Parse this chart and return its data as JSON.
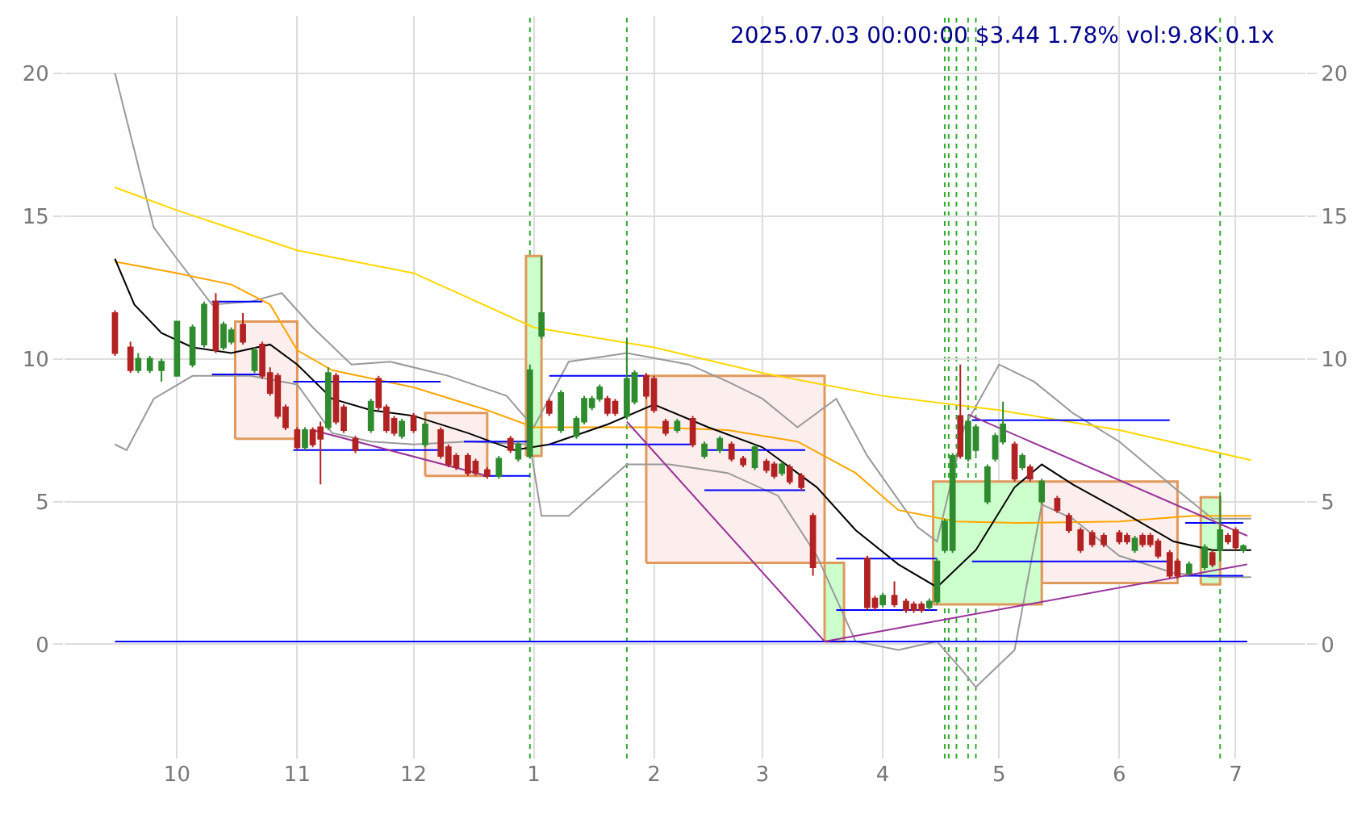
{
  "chart_data": {
    "type": "candlestick",
    "title": "2025.07.03 00:00:00 $3.44 1.78% vol:9.8K 0.1x",
    "xlim": [
      "2024-09-02",
      "2025-07-19"
    ],
    "xticks": [
      {
        "value": "2024-10-01",
        "label": "10"
      },
      {
        "value": "2024-11-01",
        "label": "11"
      },
      {
        "value": "2024-12-01",
        "label": "12"
      },
      {
        "value": "2025-01-01",
        "label": "1"
      },
      {
        "value": "2025-02-01",
        "label": "2"
      },
      {
        "value": "2025-03-01",
        "label": "3"
      },
      {
        "value": "2025-04-01",
        "label": "4"
      },
      {
        "value": "2025-05-01",
        "label": "5"
      },
      {
        "value": "2025-06-01",
        "label": "6"
      },
      {
        "value": "2025-07-01",
        "label": "7"
      }
    ],
    "ylim": [
      -4,
      22
    ],
    "yticks": [
      0,
      5,
      10,
      15,
      20
    ],
    "y2lim": [
      -4,
      22
    ],
    "y2ticks": [
      0,
      5,
      10,
      15,
      20
    ],
    "grid": true,
    "x": [
      "2024-09-15",
      "2024-09-19",
      "2024-09-21",
      "2024-09-24",
      "2024-09-27",
      "2024-10-01",
      "2024-10-05",
      "2024-10-08",
      "2024-10-11",
      "2024-10-13",
      "2024-10-15",
      "2024-10-18",
      "2024-10-21",
      "2024-10-23",
      "2024-10-25",
      "2024-10-27",
      "2024-10-29",
      "2024-11-01",
      "2024-11-03",
      "2024-11-05",
      "2024-11-07",
      "2024-11-09",
      "2024-11-11",
      "2024-11-13",
      "2024-11-16",
      "2024-11-20",
      "2024-11-22",
      "2024-11-24",
      "2024-11-26",
      "2024-11-28",
      "2024-12-01",
      "2024-12-04",
      "2024-12-08",
      "2024-12-10",
      "2024-12-12",
      "2024-12-15",
      "2024-12-17",
      "2024-12-20",
      "2024-12-23",
      "2024-12-26",
      "2024-12-28",
      "2024-12-31",
      "2025-01-03",
      "2025-01-05",
      "2025-01-08",
      "2025-01-12",
      "2025-01-14",
      "2025-01-16",
      "2025-01-18",
      "2025-01-20",
      "2025-01-22",
      "2025-01-25",
      "2025-01-27",
      "2025-01-30",
      "2025-02-01",
      "2025-02-04",
      "2025-02-07",
      "2025-02-11",
      "2025-02-14",
      "2025-02-18",
      "2025-02-21",
      "2025-02-24",
      "2025-02-27",
      "2025-03-02",
      "2025-03-04",
      "2025-03-06",
      "2025-03-08",
      "2025-03-11",
      "2025-03-14",
      "2025-03-28",
      "2025-03-30",
      "2025-04-01",
      "2025-04-04",
      "2025-04-07",
      "2025-04-09",
      "2025-04-11",
      "2025-04-13",
      "2025-04-15",
      "2025-04-17",
      "2025-04-19",
      "2025-04-21",
      "2025-04-23",
      "2025-04-25",
      "2025-04-28",
      "2025-04-30",
      "2025-05-02",
      "2025-05-05",
      "2025-05-07",
      "2025-05-09",
      "2025-05-12",
      "2025-05-16",
      "2025-05-19",
      "2025-05-22",
      "2025-05-25",
      "2025-05-28",
      "2025-06-01",
      "2025-06-03",
      "2025-06-05",
      "2025-06-07",
      "2025-06-09",
      "2025-06-11",
      "2025-06-14",
      "2025-06-16",
      "2025-06-19",
      "2025-06-23",
      "2025-06-25",
      "2025-06-27",
      "2025-06-29",
      "2025-07-01",
      "2025-07-03"
    ],
    "ohlc": [
      [
        11.6,
        11.7,
        10.1,
        10.2
      ],
      [
        10.4,
        10.6,
        9.5,
        9.6
      ],
      [
        9.6,
        10.2,
        9.5,
        10.0
      ],
      [
        9.6,
        10.1,
        9.5,
        10.0
      ],
      [
        9.6,
        10.0,
        9.2,
        9.9
      ],
      [
        9.4,
        11.3,
        9.4,
        11.3
      ],
      [
        9.8,
        11.2,
        9.7,
        11.1
      ],
      [
        10.5,
        12.0,
        10.4,
        11.9
      ],
      [
        12.0,
        12.3,
        10.2,
        10.3
      ],
      [
        10.4,
        11.3,
        10.3,
        11.2
      ],
      [
        10.6,
        11.1,
        10.5,
        11.0
      ],
      [
        11.2,
        11.6,
        10.5,
        10.6
      ],
      [
        9.6,
        10.4,
        9.5,
        10.3
      ],
      [
        10.5,
        10.6,
        9.3,
        9.4
      ],
      [
        9.5,
        9.7,
        8.7,
        8.8
      ],
      [
        9.4,
        9.5,
        7.9,
        8.0
      ],
      [
        8.3,
        8.4,
        7.5,
        7.6
      ],
      [
        7.5,
        7.6,
        6.8,
        6.9
      ],
      [
        6.9,
        7.6,
        6.8,
        7.5
      ],
      [
        7.5,
        7.6,
        6.9,
        7.0
      ],
      [
        7.6,
        7.8,
        5.6,
        7.2
      ],
      [
        7.6,
        9.7,
        7.5,
        9.5
      ],
      [
        9.4,
        9.5,
        7.7,
        7.8
      ],
      [
        8.3,
        8.4,
        7.4,
        7.5
      ],
      [
        7.2,
        7.3,
        6.7,
        6.8
      ],
      [
        7.5,
        8.6,
        7.4,
        8.5
      ],
      [
        9.3,
        9.4,
        8.2,
        8.3
      ],
      [
        8.3,
        8.4,
        7.4,
        7.5
      ],
      [
        7.9,
        8.0,
        7.3,
        7.4
      ],
      [
        7.3,
        7.9,
        7.2,
        7.8
      ],
      [
        8.0,
        8.1,
        7.4,
        7.5
      ],
      [
        7.0,
        7.8,
        6.9,
        7.7
      ],
      [
        7.5,
        7.6,
        6.5,
        6.6
      ],
      [
        6.9,
        7.0,
        6.2,
        6.3
      ],
      [
        6.6,
        6.7,
        6.1,
        6.2
      ],
      [
        6.6,
        6.7,
        5.9,
        6.0
      ],
      [
        6.4,
        6.5,
        5.9,
        6.0
      ],
      [
        6.1,
        6.2,
        5.8,
        5.9
      ],
      [
        5.9,
        6.6,
        5.8,
        6.5
      ],
      [
        7.2,
        7.3,
        6.7,
        6.8
      ],
      [
        6.5,
        7.1,
        6.4,
        7.0
      ],
      [
        6.6,
        9.8,
        6.5,
        9.6
      ],
      [
        10.8,
        13.6,
        10.7,
        11.6
      ],
      [
        8.5,
        8.6,
        8.0,
        8.1
      ],
      [
        7.5,
        8.9,
        7.4,
        8.8
      ],
      [
        7.3,
        8.0,
        7.2,
        7.9
      ],
      [
        7.8,
        8.7,
        7.7,
        8.6
      ],
      [
        8.3,
        8.7,
        8.2,
        8.6
      ],
      [
        8.6,
        9.1,
        8.5,
        9.0
      ],
      [
        8.6,
        8.7,
        8.0,
        8.1
      ],
      [
        8.5,
        8.6,
        8.0,
        8.1
      ],
      [
        8.0,
        10.7,
        7.9,
        9.3
      ],
      [
        8.5,
        9.6,
        8.4,
        9.5
      ],
      [
        9.4,
        9.5,
        8.6,
        8.7
      ],
      [
        9.3,
        9.4,
        8.1,
        8.2
      ],
      [
        7.8,
        7.9,
        7.3,
        7.4
      ],
      [
        7.5,
        7.9,
        7.4,
        7.8
      ],
      [
        7.9,
        8.0,
        6.9,
        7.0
      ],
      [
        6.6,
        7.1,
        6.5,
        7.0
      ],
      [
        6.8,
        7.3,
        6.7,
        7.2
      ],
      [
        7.0,
        7.1,
        6.4,
        6.5
      ],
      [
        6.5,
        6.6,
        6.2,
        6.3
      ],
      [
        6.2,
        7.0,
        6.1,
        6.9
      ],
      [
        6.4,
        6.5,
        6.0,
        6.1
      ],
      [
        6.3,
        6.4,
        5.8,
        5.9
      ],
      [
        6.0,
        6.4,
        5.9,
        6.3
      ],
      [
        6.2,
        6.3,
        5.6,
        5.7
      ],
      [
        5.9,
        6.0,
        5.4,
        5.5
      ],
      [
        4.5,
        4.6,
        2.4,
        2.7
      ],
      [
        3.0,
        3.1,
        1.2,
        1.3
      ],
      [
        1.6,
        1.7,
        1.2,
        1.3
      ],
      [
        1.4,
        1.8,
        1.3,
        1.7
      ],
      [
        1.7,
        2.2,
        1.3,
        1.4
      ],
      [
        1.5,
        1.6,
        1.1,
        1.2
      ],
      [
        1.4,
        1.5,
        1.1,
        1.2
      ],
      [
        1.4,
        1.5,
        1.1,
        1.2
      ],
      [
        1.3,
        1.6,
        1.2,
        1.5
      ],
      [
        1.5,
        3.0,
        1.4,
        2.9
      ],
      [
        3.3,
        4.4,
        3.2,
        4.3
      ],
      [
        3.3,
        6.7,
        3.2,
        6.6
      ],
      [
        8.0,
        9.8,
        6.5,
        6.6
      ],
      [
        6.5,
        7.9,
        6.4,
        7.8
      ],
      [
        6.8,
        7.7,
        6.7,
        7.6
      ],
      [
        5.0,
        6.3,
        4.9,
        6.2
      ],
      [
        6.5,
        7.4,
        6.4,
        7.3
      ],
      [
        7.1,
        8.5,
        7.0,
        7.7
      ],
      [
        7.0,
        7.1,
        5.7,
        5.8
      ],
      [
        6.2,
        6.7,
        6.1,
        6.6
      ],
      [
        6.2,
        6.3,
        5.7,
        5.8
      ],
      [
        5.0,
        5.8,
        4.9,
        5.7
      ],
      [
        5.1,
        5.2,
        4.6,
        4.7
      ],
      [
        4.5,
        4.6,
        3.9,
        4.0
      ],
      [
        4.0,
        4.1,
        3.2,
        3.3
      ],
      [
        3.9,
        4.0,
        3.4,
        3.5
      ],
      [
        3.8,
        3.9,
        3.4,
        3.5
      ],
      [
        3.9,
        4.0,
        3.5,
        3.6
      ],
      [
        3.8,
        3.9,
        3.5,
        3.6
      ],
      [
        3.3,
        3.8,
        3.2,
        3.7
      ],
      [
        3.8,
        3.9,
        3.4,
        3.5
      ],
      [
        3.8,
        3.9,
        3.4,
        3.5
      ],
      [
        3.6,
        3.7,
        3.0,
        3.1
      ],
      [
        3.2,
        3.3,
        2.3,
        2.4
      ],
      [
        2.9,
        3.0,
        2.3,
        2.4
      ],
      [
        2.5,
        2.9,
        2.4,
        2.8
      ],
      [
        2.7,
        3.5,
        2.6,
        3.4
      ],
      [
        3.2,
        3.3,
        2.7,
        2.8
      ],
      [
        3.3,
        5.2,
        2.9,
        4.0
      ],
      [
        3.8,
        3.9,
        3.5,
        3.6
      ],
      [
        4.0,
        4.1,
        3.3,
        3.4
      ],
      [
        3.3,
        3.5,
        3.2,
        3.44
      ]
    ],
    "series": [
      {
        "type": "area",
        "color": "#fdeeee",
        "x": [
          "2024-10-16",
          "2024-10-16",
          "2024-11-01",
          "2024-11-01",
          "2024-10-16"
        ],
        "values": [
          7.2,
          11.3,
          11.3,
          7.2,
          7.2
        ]
      },
      {
        "type": "area",
        "color": "#fdeeee",
        "x": [
          "2024-12-04",
          "2024-12-04",
          "2024-12-20",
          "2024-12-20",
          "2024-12-04"
        ],
        "values": [
          5.9,
          8.1,
          8.1,
          5.9,
          5.9
        ]
      },
      {
        "type": "area",
        "color": "#fdeeee",
        "x": [
          "2025-01-30",
          "2025-01-30",
          "2025-03-17",
          "2025-03-17",
          "2025-01-30"
        ],
        "values": [
          2.85,
          9.4,
          9.4,
          2.85,
          2.85
        ]
      },
      {
        "type": "area",
        "color": "#fdeeee",
        "x": [
          "2025-05-12",
          "2025-05-12",
          "2025-06-16",
          "2025-06-16",
          "2025-05-12"
        ],
        "values": [
          2.15,
          5.7,
          5.7,
          2.15,
          2.15
        ]
      },
      {
        "type": "area",
        "color": "#ccffcc",
        "x": [
          "2024-12-30",
          "2024-12-30",
          "2025-01-03",
          "2025-01-03",
          "2024-12-30"
        ],
        "values": [
          6.6,
          13.6,
          13.6,
          6.6,
          6.6
        ]
      },
      {
        "type": "area",
        "color": "#ccffcc",
        "x": [
          "2025-03-17",
          "2025-03-17",
          "2025-03-22",
          "2025-03-22",
          "2025-03-17"
        ],
        "values": [
          0.1,
          2.85,
          2.85,
          0.1,
          0.1
        ]
      },
      {
        "type": "area",
        "color": "#ccffcc",
        "x": [
          "2025-04-14",
          "2025-04-14",
          "2025-05-12",
          "2025-05-12",
          "2025-04-14"
        ],
        "values": [
          1.4,
          5.7,
          5.7,
          1.4,
          1.4
        ]
      },
      {
        "type": "area",
        "color": "#ccffcc",
        "x": [
          "2025-06-22",
          "2025-06-22",
          "2025-06-27",
          "2025-06-27",
          "2025-06-22"
        ],
        "values": [
          2.1,
          5.15,
          5.15,
          2.1,
          2.1
        ]
      },
      {
        "type": "line",
        "color": "#999999",
        "x": [
          "2024-09-15",
          "2024-09-20",
          "2024-09-25",
          "2024-10-01",
          "2024-10-10",
          "2024-10-20",
          "2024-10-28",
          "2024-11-05",
          "2024-11-15",
          "2024-11-25",
          "2024-12-10",
          "2024-12-25",
          "2025-01-01",
          "2025-01-10",
          "2025-01-25",
          "2025-02-10",
          "2025-02-20",
          "2025-03-01",
          "2025-03-10",
          "2025-03-20",
          "2025-03-28",
          "2025-04-10",
          "2025-04-15",
          "2025-04-22",
          "2025-05-01",
          "2025-05-10",
          "2025-05-20",
          "2025-06-01",
          "2025-06-15",
          "2025-06-25",
          "2025-07-05"
        ],
        "values": [
          20.0,
          17.3,
          14.6,
          13.5,
          11.9,
          12.0,
          12.3,
          11.1,
          9.8,
          9.9,
          9.4,
          8.7,
          7.6,
          9.9,
          10.2,
          9.8,
          9.2,
          8.6,
          7.6,
          8.6,
          6.6,
          4.1,
          3.6,
          7.6,
          9.8,
          9.2,
          8.1,
          7.1,
          5.5,
          4.4,
          4.4
        ]
      },
      {
        "type": "line",
        "color": "#999999",
        "x": [
          "2024-09-15",
          "2024-09-18",
          "2024-09-25",
          "2024-10-05",
          "2024-10-20",
          "2024-11-01",
          "2024-11-10",
          "2024-11-20",
          "2024-12-01",
          "2024-12-15",
          "2024-12-31",
          "2025-01-03",
          "2025-01-10",
          "2025-01-25",
          "2025-02-05",
          "2025-02-20",
          "2025-03-05",
          "2025-03-15",
          "2025-03-25",
          "2025-04-05",
          "2025-04-15",
          "2025-04-22",
          "2025-04-25",
          "2025-05-05",
          "2025-05-12",
          "2025-05-20",
          "2025-06-01",
          "2025-06-15",
          "2025-06-25",
          "2025-07-05"
        ],
        "values": [
          7.0,
          6.8,
          8.6,
          9.4,
          9.4,
          9.1,
          7.4,
          7.1,
          7.0,
          7.1,
          7.0,
          4.5,
          4.5,
          6.3,
          6.3,
          6.0,
          5.2,
          3.1,
          0.1,
          -0.2,
          0.1,
          -1.0,
          -1.5,
          -0.2,
          4.9,
          4.4,
          3.1,
          2.5,
          2.35,
          2.35
        ]
      },
      {
        "type": "line",
        "color": "#ffd700",
        "x": [
          "2024-09-15",
          "2024-10-01",
          "2024-11-01",
          "2024-12-01",
          "2025-01-01",
          "2025-02-01",
          "2025-03-01",
          "2025-04-01",
          "2025-05-01",
          "2025-06-01",
          "2025-07-05"
        ],
        "values": [
          16.0,
          15.2,
          13.8,
          13.0,
          11.1,
          10.4,
          9.5,
          8.7,
          8.2,
          7.5,
          6.45
        ]
      },
      {
        "type": "line",
        "color": "#ffa500",
        "x": [
          "2024-09-15",
          "2024-10-01",
          "2024-10-15",
          "2024-10-25",
          "2024-11-01",
          "2024-11-10",
          "2024-12-01",
          "2024-12-20",
          "2025-01-01",
          "2025-02-01",
          "2025-02-20",
          "2025-03-10",
          "2025-03-25",
          "2025-04-05",
          "2025-04-20",
          "2025-05-05",
          "2025-06-01",
          "2025-06-20",
          "2025-07-05"
        ],
        "values": [
          13.4,
          13.0,
          12.6,
          11.9,
          10.3,
          9.6,
          9.0,
          8.2,
          7.6,
          7.6,
          7.5,
          7.1,
          6.0,
          4.7,
          4.3,
          4.25,
          4.3,
          4.5,
          4.5
        ]
      },
      {
        "type": "line",
        "color": "#000000",
        "x": [
          "2024-09-15",
          "2024-09-20",
          "2024-09-27",
          "2024-10-05",
          "2024-10-15",
          "2024-10-25",
          "2024-11-01",
          "2024-11-10",
          "2024-11-20",
          "2024-12-01",
          "2024-12-15",
          "2024-12-27",
          "2025-01-05",
          "2025-01-20",
          "2025-02-01",
          "2025-02-15",
          "2025-03-01",
          "2025-03-15",
          "2025-03-25",
          "2025-04-05",
          "2025-04-15",
          "2025-04-25",
          "2025-05-05",
          "2025-05-12",
          "2025-05-20",
          "2025-06-01",
          "2025-06-15",
          "2025-06-25",
          "2025-07-05"
        ],
        "values": [
          13.5,
          11.9,
          10.9,
          10.4,
          10.2,
          10.5,
          9.8,
          8.6,
          8.2,
          8.0,
          7.4,
          6.8,
          7.0,
          7.7,
          8.4,
          7.6,
          6.9,
          5.5,
          4.0,
          2.8,
          2.0,
          3.3,
          5.5,
          6.3,
          5.6,
          4.7,
          3.6,
          3.3,
          3.3
        ]
      },
      {
        "type": "line",
        "color": "#0000ff",
        "x": [
          "2024-10-10",
          "2024-10-23"
        ],
        "values": [
          12.0,
          12.0
        ]
      },
      {
        "type": "line",
        "color": "#0000ff",
        "x": [
          "2024-10-10",
          "2024-10-23"
        ],
        "values": [
          9.45,
          9.45
        ]
      },
      {
        "type": "line",
        "color": "#0000ff",
        "x": [
          "2024-10-31",
          "2024-12-08"
        ],
        "values": [
          9.2,
          9.2
        ]
      },
      {
        "type": "line",
        "color": "#0000ff",
        "x": [
          "2024-10-31",
          "2024-12-08"
        ],
        "values": [
          6.8,
          6.8
        ]
      },
      {
        "type": "line",
        "color": "#0000ff",
        "x": [
          "2024-12-14",
          "2024-12-31"
        ],
        "values": [
          7.1,
          7.1
        ]
      },
      {
        "type": "line",
        "color": "#0000ff",
        "x": [
          "2024-12-19",
          "2024-12-31"
        ],
        "values": [
          5.9,
          5.9
        ]
      },
      {
        "type": "line",
        "color": "#0000ff",
        "x": [
          "2025-01-05",
          "2025-01-30"
        ],
        "values": [
          9.4,
          9.4
        ]
      },
      {
        "type": "line",
        "color": "#0000ff",
        "x": [
          "2025-01-05",
          "2025-02-11"
        ],
        "values": [
          7.0,
          7.0
        ]
      },
      {
        "type": "line",
        "color": "#0000ff",
        "x": [
          "2025-02-14",
          "2025-03-12"
        ],
        "values": [
          6.8,
          6.8
        ]
      },
      {
        "type": "line",
        "color": "#0000ff",
        "x": [
          "2025-02-14",
          "2025-03-12"
        ],
        "values": [
          5.4,
          5.4
        ]
      },
      {
        "type": "line",
        "color": "#0000ff",
        "x": [
          "2025-03-20",
          "2025-04-15"
        ],
        "values": [
          3.0,
          3.0
        ]
      },
      {
        "type": "line",
        "color": "#0000ff",
        "x": [
          "2025-03-20",
          "2025-04-15"
        ],
        "values": [
          1.2,
          1.2
        ]
      },
      {
        "type": "line",
        "color": "#0000ff",
        "x": [
          "2025-04-24",
          "2025-06-14"
        ],
        "values": [
          7.85,
          7.85
        ]
      },
      {
        "type": "line",
        "color": "#0000ff",
        "x": [
          "2025-04-24",
          "2025-06-14"
        ],
        "values": [
          2.9,
          2.9
        ]
      },
      {
        "type": "line",
        "color": "#0000ff",
        "x": [
          "2025-06-18",
          "2025-07-03"
        ],
        "values": [
          4.25,
          4.25
        ]
      },
      {
        "type": "line",
        "color": "#0000ff",
        "x": [
          "2025-06-18",
          "2025-07-03"
        ],
        "values": [
          2.4,
          2.4
        ]
      },
      {
        "type": "line",
        "color": "#0000ff",
        "x": [
          "2024-09-15",
          "2025-07-04"
        ],
        "values": [
          0.1,
          0.1
        ]
      },
      {
        "type": "line",
        "color": "#993399",
        "x": [
          "2024-11-05",
          "2024-12-20"
        ],
        "values": [
          7.5,
          5.9
        ]
      },
      {
        "type": "line",
        "color": "#993399",
        "x": [
          "2025-01-25",
          "2025-03-17"
        ],
        "values": [
          7.8,
          0.1
        ]
      },
      {
        "type": "line",
        "color": "#993399",
        "x": [
          "2025-03-17",
          "2025-07-04"
        ],
        "values": [
          0.1,
          2.8
        ]
      },
      {
        "type": "line",
        "color": "#993399",
        "x": [
          "2025-04-23",
          "2025-07-04"
        ],
        "values": [
          8.05,
          3.8
        ]
      }
    ],
    "ref_lines": [
      {
        "axis": "x",
        "value": "2024-12-31",
        "color": "#33aa33",
        "line_style": "dotted"
      },
      {
        "axis": "x",
        "value": "2025-01-25",
        "color": "#33aa33",
        "line_style": "dotted"
      },
      {
        "axis": "x",
        "value": "2025-04-17",
        "color": "#33aa33",
        "line_style": "dotted"
      },
      {
        "axis": "x",
        "value": "2025-04-18",
        "color": "#33aa33",
        "line_style": "dotted"
      },
      {
        "axis": "x",
        "value": "2025-04-20",
        "color": "#33aa33",
        "line_style": "dotted"
      },
      {
        "axis": "x",
        "value": "2025-04-23",
        "color": "#33aa33",
        "line_style": "dotted"
      },
      {
        "axis": "x",
        "value": "2025-04-25",
        "color": "#33aa33",
        "line_style": "dotted"
      },
      {
        "axis": "x",
        "value": "2025-06-27",
        "color": "#33aa33",
        "line_style": "dotted"
      }
    ]
  }
}
